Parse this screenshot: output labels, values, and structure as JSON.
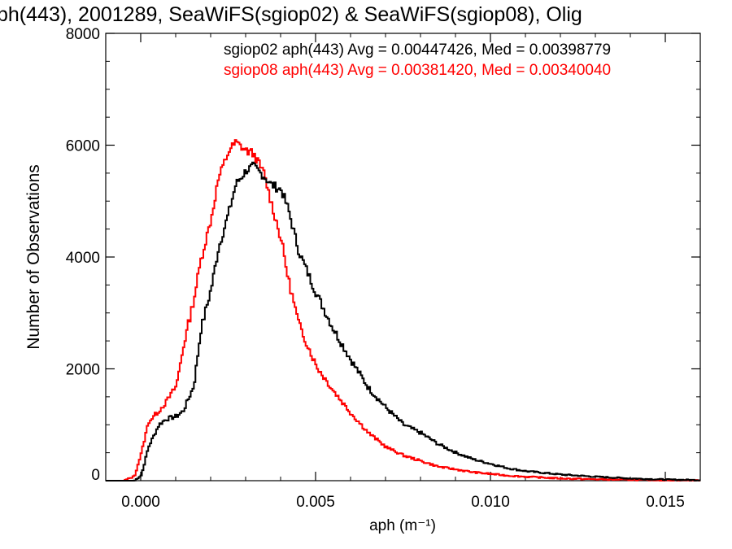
{
  "chart_data": {
    "type": "line",
    "title": "ph(443), 2001289, SeaWiFS(sgiop02) & SeaWiFS(sgiop08), Olig",
    "xlabel": "aph (m⁻¹)",
    "ylabel": "Number of Observations",
    "xlim": [
      -0.001,
      0.016
    ],
    "ylim": [
      0,
      8000
    ],
    "x_ticks": [
      0.0,
      0.005,
      0.01,
      0.015
    ],
    "x_tick_labels": [
      "0.000",
      "0.005",
      "0.010",
      "0.015"
    ],
    "y_ticks": [
      0,
      2000,
      4000,
      6000,
      8000
    ],
    "y_tick_labels": [
      "0",
      "2000",
      "4000",
      "6000",
      "8000"
    ],
    "grid": false,
    "legend_placement": "top-right",
    "x": [
      -0.001,
      -0.0005,
      -0.0002,
      0.0,
      0.0002,
      0.0005,
      0.0007,
      0.001,
      0.0012,
      0.0015,
      0.0017,
      0.002,
      0.0022,
      0.0025,
      0.0027,
      0.003,
      0.0032,
      0.0035,
      0.0037,
      0.004,
      0.0042,
      0.0045,
      0.0047,
      0.005,
      0.0055,
      0.006,
      0.0065,
      0.007,
      0.0075,
      0.008,
      0.0085,
      0.009,
      0.0095,
      0.01,
      0.0105,
      0.011,
      0.012,
      0.013,
      0.014,
      0.015,
      0.016
    ],
    "series": [
      {
        "name": "sgiop02 aph(443) Avg = 0.00447426, Med = 0.00398779",
        "color": "#000000",
        "values": [
          0,
          0,
          0,
          100,
          600,
          1000,
          1100,
          1150,
          1250,
          1700,
          2700,
          3450,
          4150,
          4800,
          5300,
          5550,
          5620,
          5450,
          5300,
          5200,
          4850,
          4100,
          3800,
          3350,
          2700,
          2150,
          1650,
          1300,
          1000,
          850,
          650,
          500,
          380,
          300,
          220,
          170,
          110,
          70,
          40,
          20,
          10
        ]
      },
      {
        "name": "sgiop08 aph(443) Avg = 0.00381420, Med = 0.00340040",
        "color": "#ff0000",
        "values": [
          0,
          0,
          80,
          500,
          1050,
          1250,
          1400,
          1700,
          2400,
          3250,
          3950,
          4700,
          5400,
          5900,
          6050,
          5900,
          5850,
          5500,
          5000,
          4300,
          3600,
          2800,
          2500,
          2050,
          1600,
          1200,
          850,
          600,
          450,
          350,
          250,
          200,
          150,
          120,
          90,
          70,
          40,
          25,
          15,
          8,
          4
        ]
      }
    ]
  }
}
